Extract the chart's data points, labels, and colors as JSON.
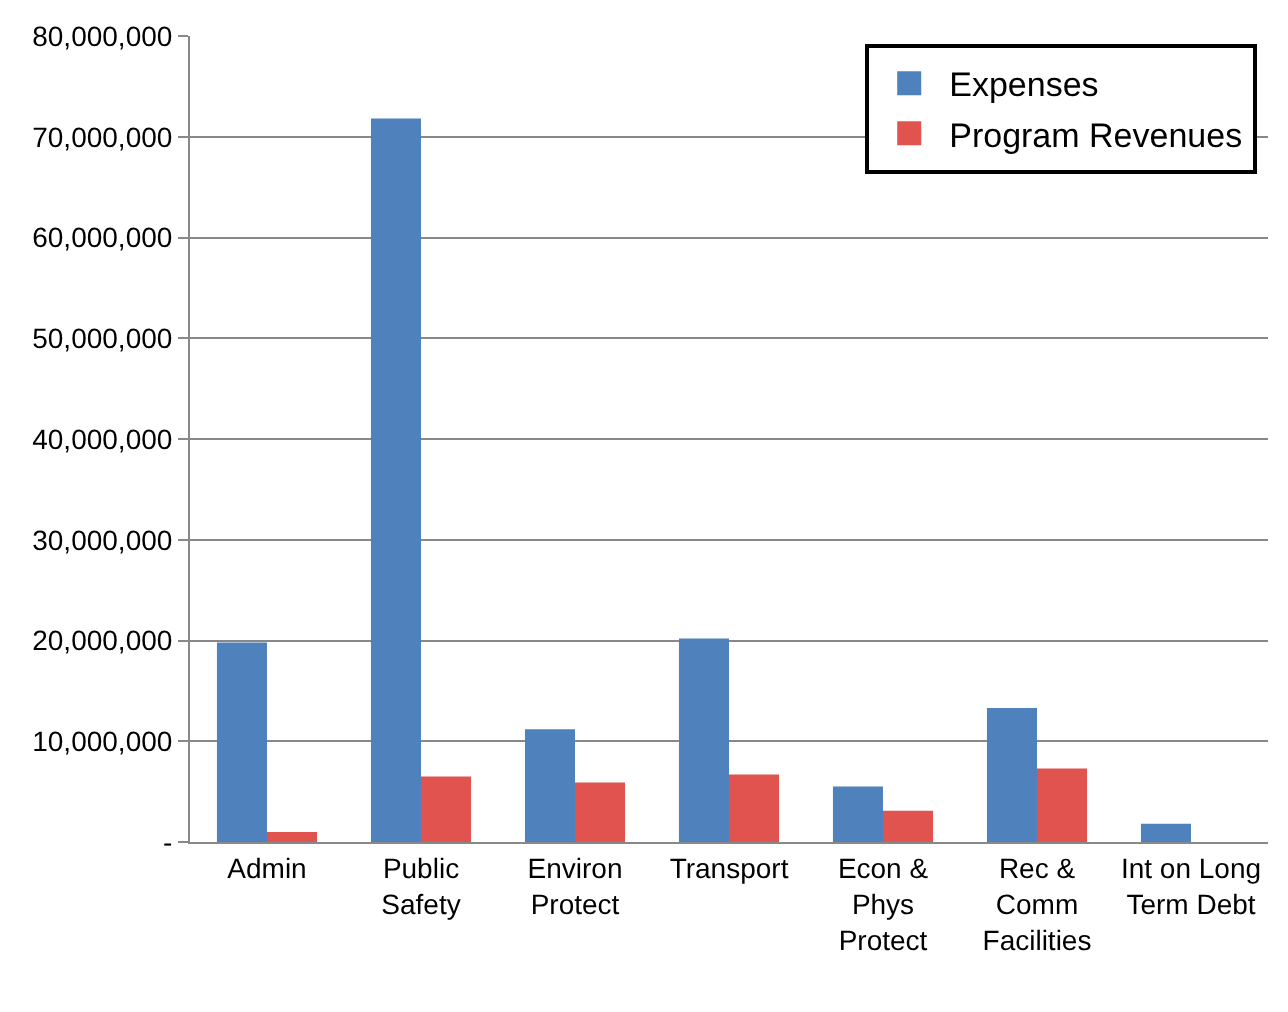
{
  "chart_data": {
    "type": "bar",
    "categories": [
      "Admin",
      "Public\nSafety",
      "Environ\nProtect",
      "Transport",
      "Econ &\nPhys\nProtect",
      "Rec &\nComm\nFacilities",
      "Int on Long\nTerm Debt"
    ],
    "series": [
      {
        "name": "Expenses",
        "color": "#4f81bd",
        "values": [
          19800000,
          71800000,
          11200000,
          20200000,
          5500000,
          13300000,
          1800000
        ]
      },
      {
        "name": "Program Revenues",
        "color": "#e0534f",
        "values": [
          1000000,
          6500000,
          5900000,
          6700000,
          3100000,
          7300000,
          null
        ]
      }
    ],
    "ylim": [
      0,
      80000000
    ],
    "yticks": [
      {
        "value": 0,
        "label": "-"
      },
      {
        "value": 10000000,
        "label": "10,000,000"
      },
      {
        "value": 20000000,
        "label": "20,000,000"
      },
      {
        "value": 30000000,
        "label": "30,000,000"
      },
      {
        "value": 40000000,
        "label": "40,000,000"
      },
      {
        "value": 50000000,
        "label": "50,000,000"
      },
      {
        "value": 60000000,
        "label": "60,000,000"
      },
      {
        "value": 70000000,
        "label": "70,000,000"
      },
      {
        "value": 80000000,
        "label": "80,000,000"
      }
    ],
    "grid": "y",
    "legend": "top right"
  }
}
